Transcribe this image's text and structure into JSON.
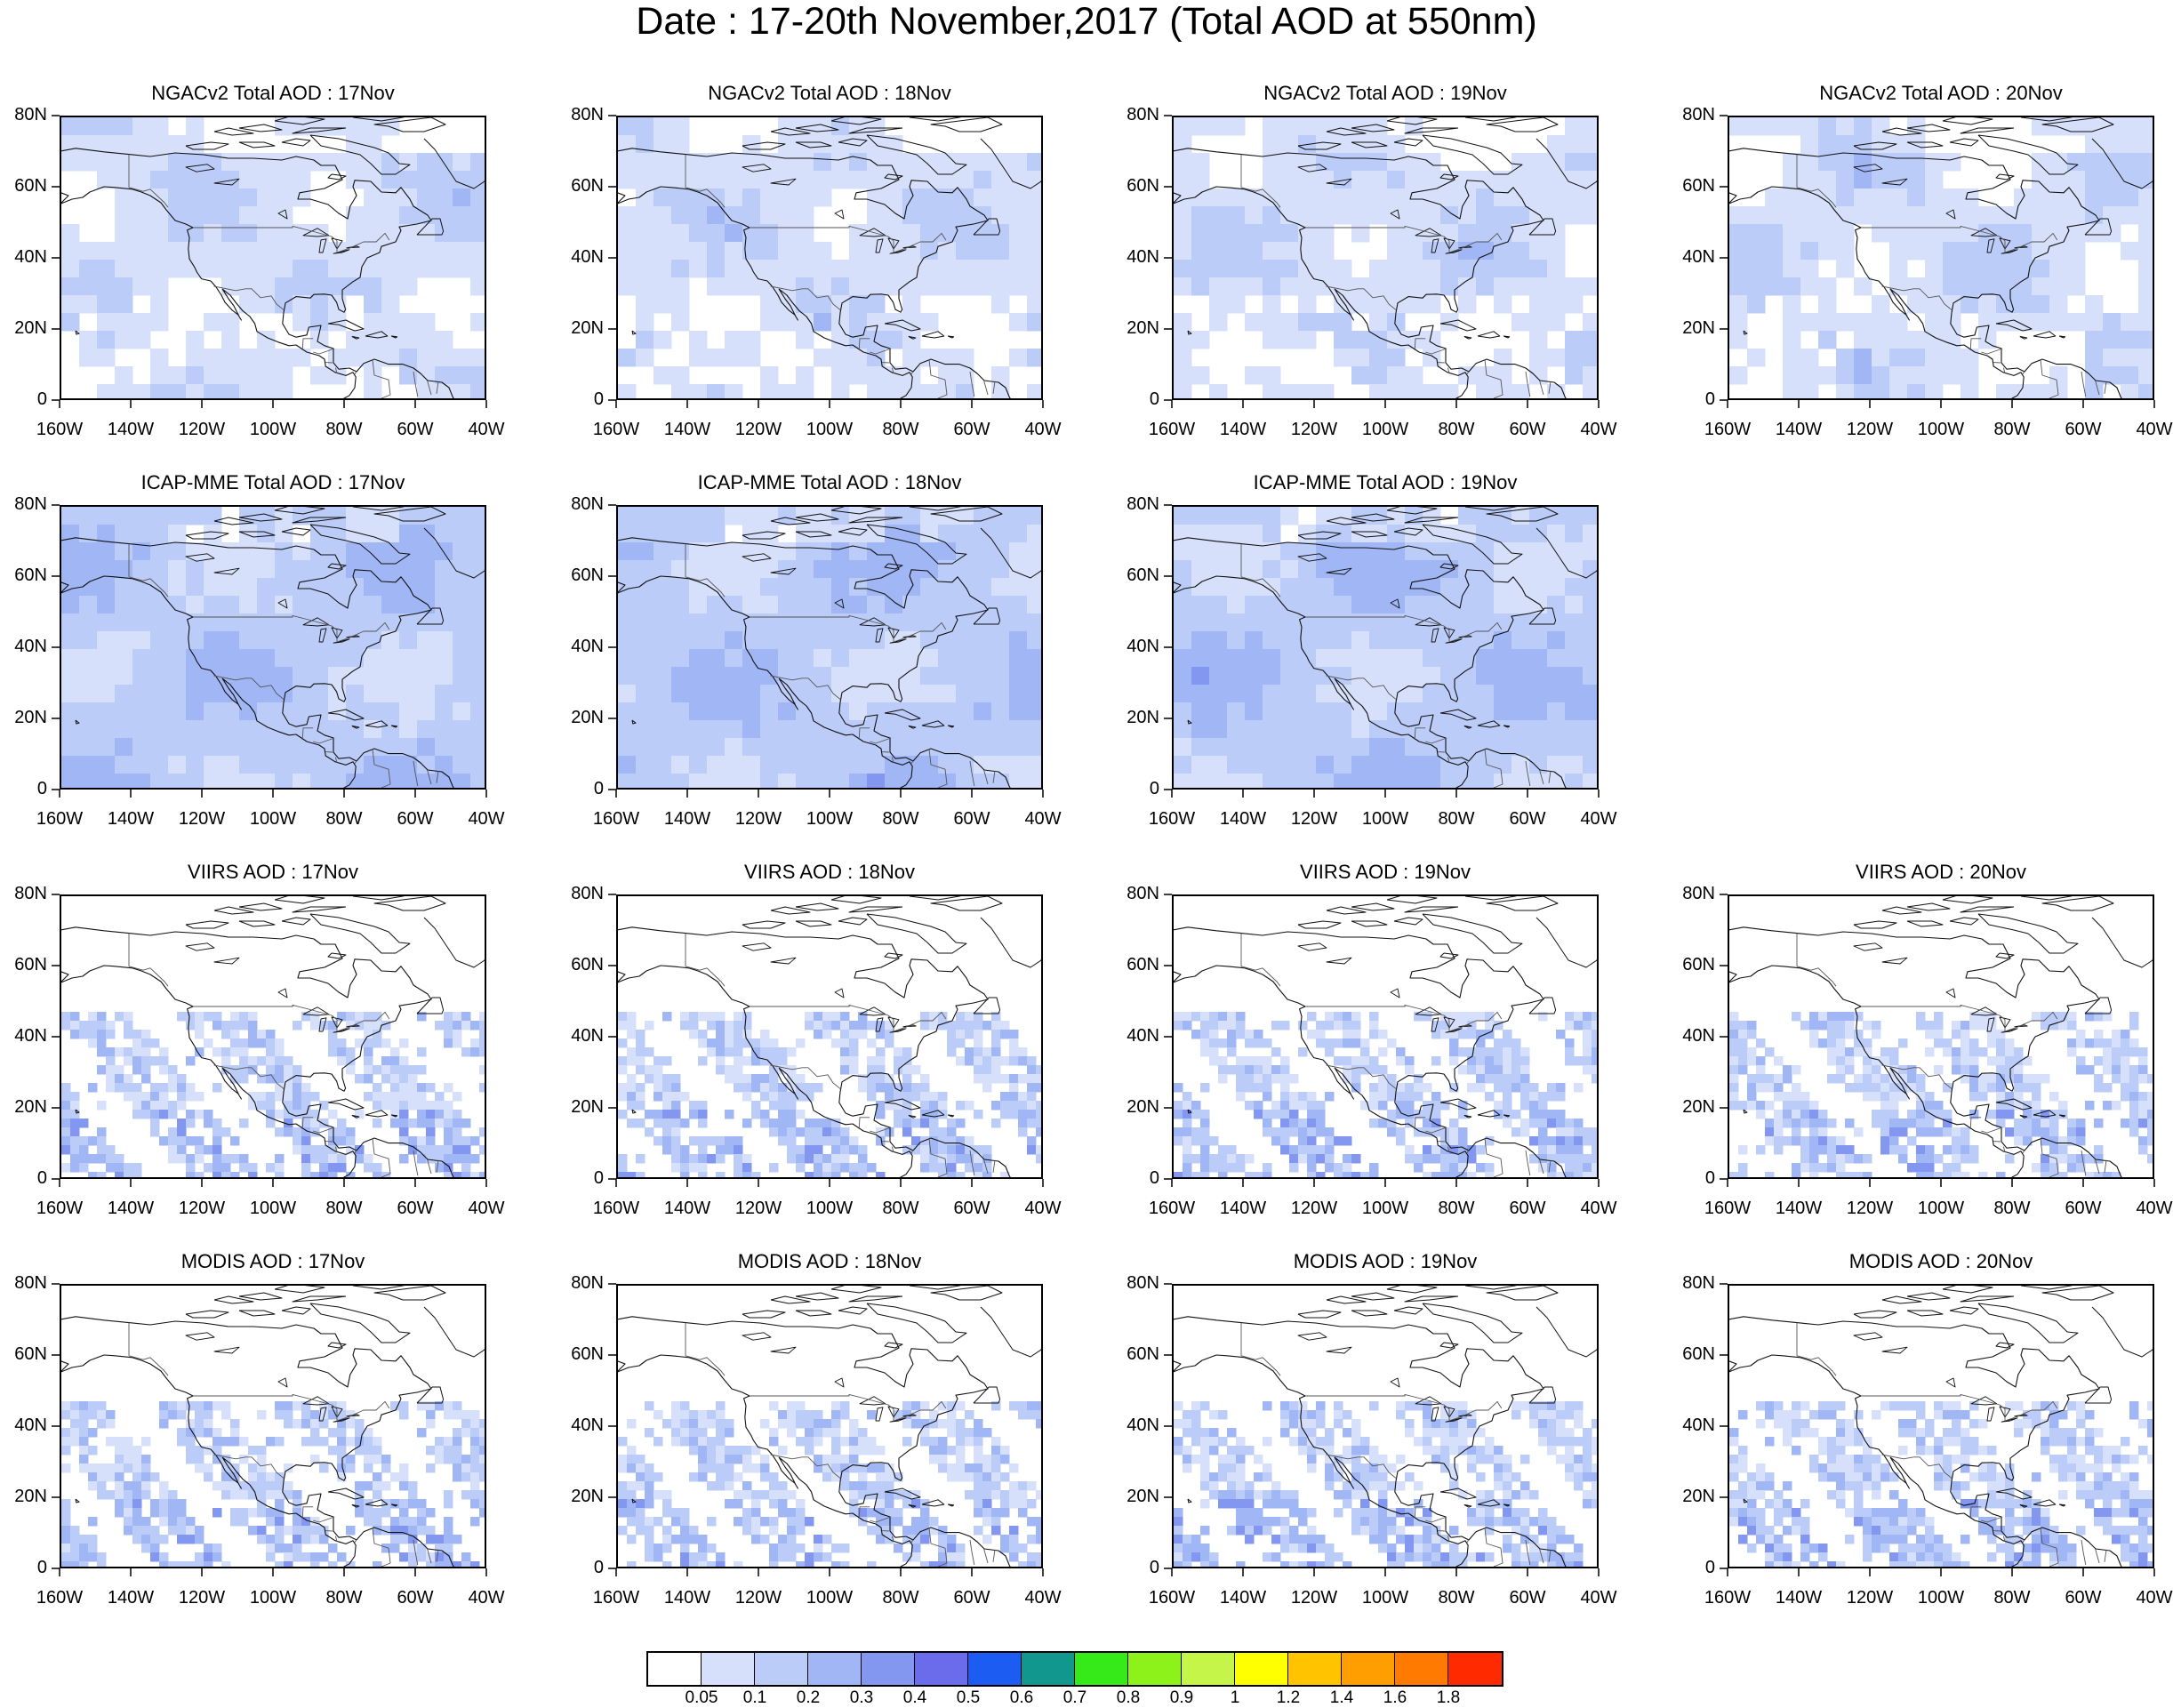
{
  "title": "Date : 17-20th November,2017 (Total AOD at 550nm)",
  "lat_labels": [
    "80N",
    "60N",
    "40N",
    "20N",
    "0"
  ],
  "lon_labels": [
    "160W",
    "140W",
    "120W",
    "100W",
    "80W",
    "60W",
    "40W"
  ],
  "map_extent": {
    "lon": [
      -160,
      -40
    ],
    "lat": [
      0,
      80
    ]
  },
  "rows": [
    {
      "product": "NGACv2 Total AOD",
      "panels": [
        {
          "title": "NGACv2 Total AOD : 17Nov",
          "style": "model"
        },
        {
          "title": "NGACv2 Total AOD : 18Nov",
          "style": "model"
        },
        {
          "title": "NGACv2 Total AOD : 19Nov",
          "style": "model"
        },
        {
          "title": "NGACv2 Total AOD : 20Nov",
          "style": "model"
        }
      ]
    },
    {
      "product": "ICAP-MME Total AOD",
      "panels": [
        {
          "title": "ICAP-MME Total AOD : 17Nov",
          "style": "ensemble"
        },
        {
          "title": "ICAP-MME Total AOD : 18Nov",
          "style": "ensemble"
        },
        {
          "title": "ICAP-MME Total AOD : 19Nov",
          "style": "ensemble"
        },
        null
      ]
    },
    {
      "product": "VIIRS AOD",
      "panels": [
        {
          "title": "VIIRS AOD : 17Nov",
          "style": "satellite"
        },
        {
          "title": "VIIRS AOD : 18Nov",
          "style": "satellite"
        },
        {
          "title": "VIIRS AOD : 19Nov",
          "style": "satellite"
        },
        {
          "title": "VIIRS AOD : 20Nov",
          "style": "satellite"
        }
      ]
    },
    {
      "product": "MODIS AOD",
      "panels": [
        {
          "title": "MODIS AOD : 17Nov",
          "style": "satellite"
        },
        {
          "title": "MODIS AOD : 18Nov",
          "style": "satellite"
        },
        {
          "title": "MODIS AOD : 19Nov",
          "style": "satellite"
        },
        {
          "title": "MODIS AOD : 20Nov",
          "style": "satellite"
        }
      ]
    }
  ],
  "colorbar": {
    "labels": [
      "0.05",
      "0.1",
      "0.2",
      "0.3",
      "0.4",
      "0.5",
      "0.6",
      "0.7",
      "0.8",
      "0.9",
      "1",
      "1.2",
      "1.4",
      "1.6",
      "1.8"
    ],
    "colors": [
      "#ffffff",
      "#d6e0fb",
      "#bcccf8",
      "#a0b6f5",
      "#8397f0",
      "#6a6cec",
      "#1c5cf2",
      "#11978e",
      "#36ea1a",
      "#8cf21a",
      "#c5f549",
      "#ffff00",
      "#ffc300",
      "#ff9e00",
      "#ff7a00",
      "#ff2a00"
    ]
  }
}
